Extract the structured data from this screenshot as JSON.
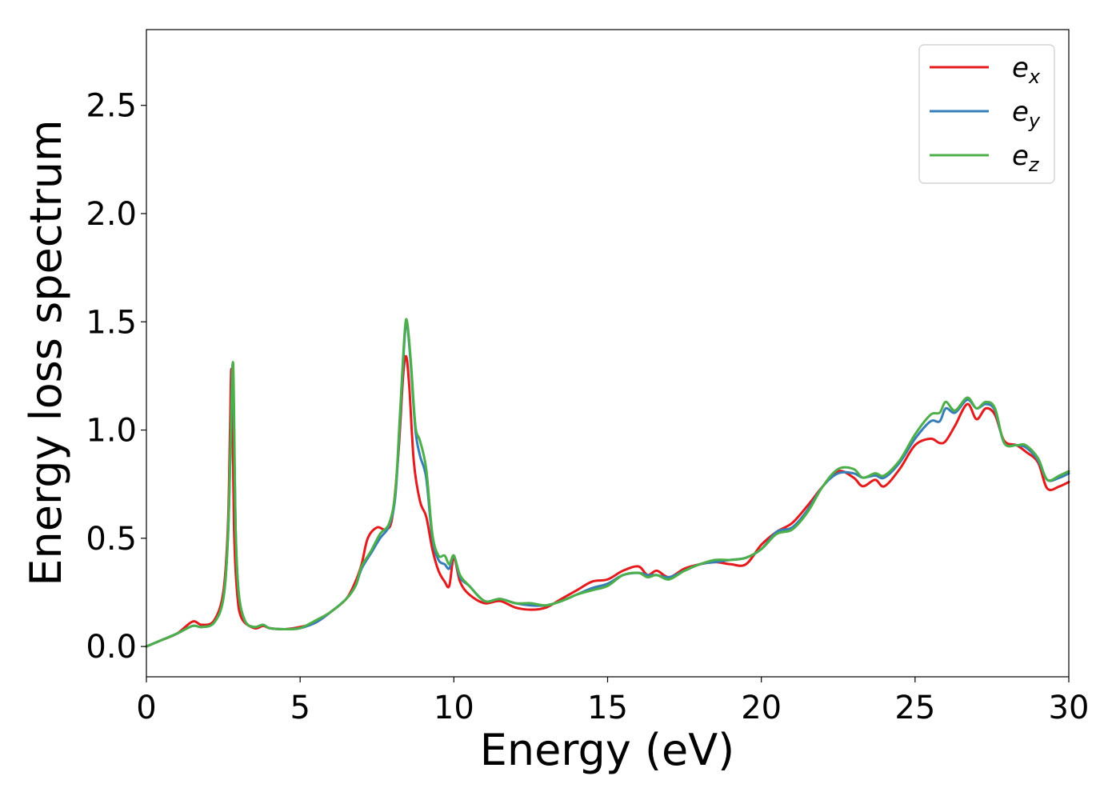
{
  "chart_data": {
    "type": "line",
    "title": "",
    "xlabel": "Energy (eV)",
    "ylabel": "Energy loss spectrum",
    "xlim": [
      0,
      30
    ],
    "ylim": [
      -0.14,
      2.85
    ],
    "xticks": [
      0,
      5,
      10,
      15,
      20,
      25,
      30
    ],
    "yticks": [
      0.0,
      0.5,
      1.0,
      1.5,
      2.0,
      2.5
    ],
    "xtick_labels": [
      "0",
      "5",
      "10",
      "15",
      "20",
      "25",
      "30"
    ],
    "ytick_labels": [
      "0.0",
      "0.5",
      "1.0",
      "1.5",
      "2.0",
      "2.5"
    ],
    "grid": false,
    "legend_position": "top-right",
    "legend": [
      {
        "base": "e",
        "sub": "x"
      },
      {
        "base": "e",
        "sub": "y"
      },
      {
        "base": "e",
        "sub": "z"
      }
    ],
    "series": [
      {
        "color": "#e41a1c",
        "points": [
          [
            0,
            0
          ],
          [
            0.5,
            0.03
          ],
          [
            1.0,
            0.06
          ],
          [
            1.5,
            0.115
          ],
          [
            1.8,
            0.1
          ],
          [
            2.2,
            0.12
          ],
          [
            2.5,
            0.25
          ],
          [
            2.65,
            0.55
          ],
          [
            2.72,
            1.0
          ],
          [
            2.76,
            1.28
          ],
          [
            2.8,
            1.1
          ],
          [
            2.85,
            0.55
          ],
          [
            2.95,
            0.25
          ],
          [
            3.1,
            0.13
          ],
          [
            3.5,
            0.085
          ],
          [
            3.8,
            0.095
          ],
          [
            4.0,
            0.085
          ],
          [
            4.5,
            0.08
          ],
          [
            5,
            0.09
          ],
          [
            5.5,
            0.11
          ],
          [
            6,
            0.16
          ],
          [
            6.5,
            0.22
          ],
          [
            6.8,
            0.3
          ],
          [
            7.0,
            0.38
          ],
          [
            7.2,
            0.5
          ],
          [
            7.5,
            0.55
          ],
          [
            7.8,
            0.54
          ],
          [
            8.0,
            0.6
          ],
          [
            8.2,
            0.9
          ],
          [
            8.35,
            1.25
          ],
          [
            8.45,
            1.34
          ],
          [
            8.55,
            1.2
          ],
          [
            8.7,
            0.85
          ],
          [
            8.9,
            0.67
          ],
          [
            9.1,
            0.6
          ],
          [
            9.3,
            0.45
          ],
          [
            9.5,
            0.35
          ],
          [
            9.7,
            0.3
          ],
          [
            9.85,
            0.28
          ],
          [
            10.0,
            0.41
          ],
          [
            10.2,
            0.3
          ],
          [
            10.5,
            0.24
          ],
          [
            11,
            0.2
          ],
          [
            11.5,
            0.21
          ],
          [
            12,
            0.18
          ],
          [
            12.5,
            0.17
          ],
          [
            13,
            0.18
          ],
          [
            13.5,
            0.22
          ],
          [
            14,
            0.26
          ],
          [
            14.5,
            0.3
          ],
          [
            15,
            0.31
          ],
          [
            15.5,
            0.35
          ],
          [
            16,
            0.37
          ],
          [
            16.3,
            0.33
          ],
          [
            16.6,
            0.35
          ],
          [
            17,
            0.32
          ],
          [
            17.5,
            0.36
          ],
          [
            18,
            0.38
          ],
          [
            18.5,
            0.39
          ],
          [
            19,
            0.38
          ],
          [
            19.5,
            0.38
          ],
          [
            20,
            0.47
          ],
          [
            20.5,
            0.53
          ],
          [
            21,
            0.57
          ],
          [
            21.5,
            0.65
          ],
          [
            22,
            0.74
          ],
          [
            22.5,
            0.81
          ],
          [
            23,
            0.78
          ],
          [
            23.3,
            0.74
          ],
          [
            23.7,
            0.77
          ],
          [
            24,
            0.74
          ],
          [
            24.5,
            0.82
          ],
          [
            25,
            0.93
          ],
          [
            25.5,
            0.96
          ],
          [
            25.8,
            0.94
          ],
          [
            26,
            0.95
          ],
          [
            26.3,
            1.02
          ],
          [
            26.7,
            1.12
          ],
          [
            27,
            1.05
          ],
          [
            27.3,
            1.1
          ],
          [
            27.6,
            1.07
          ],
          [
            27.9,
            0.95
          ],
          [
            28.3,
            0.93
          ],
          [
            28.6,
            0.9
          ],
          [
            29,
            0.85
          ],
          [
            29.3,
            0.73
          ],
          [
            29.7,
            0.74
          ],
          [
            30,
            0.76
          ]
        ]
      },
      {
        "color": "#377eb8",
        "points": [
          [
            0,
            0
          ],
          [
            0.5,
            0.03
          ],
          [
            1.0,
            0.06
          ],
          [
            1.5,
            0.095
          ],
          [
            1.8,
            0.09
          ],
          [
            2.2,
            0.11
          ],
          [
            2.5,
            0.22
          ],
          [
            2.65,
            0.5
          ],
          [
            2.74,
            0.95
          ],
          [
            2.8,
            1.3
          ],
          [
            2.84,
            1.1
          ],
          [
            2.9,
            0.55
          ],
          [
            3.0,
            0.25
          ],
          [
            3.2,
            0.12
          ],
          [
            3.5,
            0.09
          ],
          [
            3.8,
            0.1
          ],
          [
            4.0,
            0.085
          ],
          [
            4.5,
            0.08
          ],
          [
            5,
            0.085
          ],
          [
            5.5,
            0.11
          ],
          [
            6,
            0.16
          ],
          [
            6.5,
            0.22
          ],
          [
            6.8,
            0.28
          ],
          [
            7.0,
            0.36
          ],
          [
            7.3,
            0.43
          ],
          [
            7.6,
            0.5
          ],
          [
            7.9,
            0.56
          ],
          [
            8.1,
            0.7
          ],
          [
            8.25,
            1.05
          ],
          [
            8.4,
            1.43
          ],
          [
            8.48,
            1.49
          ],
          [
            8.6,
            1.3
          ],
          [
            8.75,
            1.0
          ],
          [
            8.9,
            0.88
          ],
          [
            9.1,
            0.78
          ],
          [
            9.3,
            0.5
          ],
          [
            9.5,
            0.4
          ],
          [
            9.7,
            0.38
          ],
          [
            9.85,
            0.36
          ],
          [
            10.0,
            0.42
          ],
          [
            10.2,
            0.32
          ],
          [
            10.5,
            0.28
          ],
          [
            11,
            0.21
          ],
          [
            11.5,
            0.22
          ],
          [
            12,
            0.2
          ],
          [
            12.5,
            0.19
          ],
          [
            13,
            0.19
          ],
          [
            13.5,
            0.21
          ],
          [
            14,
            0.24
          ],
          [
            14.5,
            0.27
          ],
          [
            15,
            0.29
          ],
          [
            15.5,
            0.33
          ],
          [
            16,
            0.34
          ],
          [
            16.3,
            0.33
          ],
          [
            16.6,
            0.33
          ],
          [
            17,
            0.32
          ],
          [
            17.5,
            0.35
          ],
          [
            18,
            0.38
          ],
          [
            18.5,
            0.39
          ],
          [
            19,
            0.4
          ],
          [
            19.5,
            0.41
          ],
          [
            20,
            0.45
          ],
          [
            20.5,
            0.53
          ],
          [
            21,
            0.55
          ],
          [
            21.5,
            0.63
          ],
          [
            22,
            0.74
          ],
          [
            22.5,
            0.8
          ],
          [
            23,
            0.8
          ],
          [
            23.3,
            0.78
          ],
          [
            23.7,
            0.79
          ],
          [
            24,
            0.78
          ],
          [
            24.5,
            0.85
          ],
          [
            25,
            0.96
          ],
          [
            25.5,
            1.04
          ],
          [
            25.8,
            1.04
          ],
          [
            26,
            1.1
          ],
          [
            26.3,
            1.08
          ],
          [
            26.7,
            1.14
          ],
          [
            27,
            1.1
          ],
          [
            27.3,
            1.12
          ],
          [
            27.6,
            1.09
          ],
          [
            27.9,
            0.94
          ],
          [
            28.3,
            0.93
          ],
          [
            28.6,
            0.92
          ],
          [
            29,
            0.86
          ],
          [
            29.3,
            0.77
          ],
          [
            29.7,
            0.78
          ],
          [
            30,
            0.8
          ]
        ]
      },
      {
        "color": "#4daf4a",
        "points": [
          [
            0,
            0
          ],
          [
            0.5,
            0.03
          ],
          [
            1.0,
            0.06
          ],
          [
            1.5,
            0.095
          ],
          [
            1.8,
            0.09
          ],
          [
            2.2,
            0.11
          ],
          [
            2.5,
            0.22
          ],
          [
            2.65,
            0.5
          ],
          [
            2.74,
            0.95
          ],
          [
            2.81,
            1.31
          ],
          [
            2.85,
            1.1
          ],
          [
            2.9,
            0.55
          ],
          [
            3.0,
            0.25
          ],
          [
            3.2,
            0.12
          ],
          [
            3.5,
            0.09
          ],
          [
            3.8,
            0.1
          ],
          [
            4.0,
            0.085
          ],
          [
            4.5,
            0.08
          ],
          [
            5,
            0.085
          ],
          [
            5.5,
            0.12
          ],
          [
            6,
            0.16
          ],
          [
            6.5,
            0.22
          ],
          [
            6.8,
            0.28
          ],
          [
            7.0,
            0.37
          ],
          [
            7.3,
            0.44
          ],
          [
            7.6,
            0.52
          ],
          [
            7.9,
            0.57
          ],
          [
            8.1,
            0.72
          ],
          [
            8.25,
            1.08
          ],
          [
            8.4,
            1.45
          ],
          [
            8.48,
            1.5
          ],
          [
            8.6,
            1.32
          ],
          [
            8.75,
            1.02
          ],
          [
            8.9,
            0.95
          ],
          [
            9.1,
            0.82
          ],
          [
            9.3,
            0.52
          ],
          [
            9.5,
            0.42
          ],
          [
            9.7,
            0.42
          ],
          [
            9.85,
            0.38
          ],
          [
            10.0,
            0.42
          ],
          [
            10.2,
            0.33
          ],
          [
            10.5,
            0.28
          ],
          [
            11,
            0.21
          ],
          [
            11.5,
            0.22
          ],
          [
            12,
            0.2
          ],
          [
            12.5,
            0.2
          ],
          [
            13,
            0.19
          ],
          [
            13.5,
            0.21
          ],
          [
            14,
            0.24
          ],
          [
            14.5,
            0.26
          ],
          [
            15,
            0.28
          ],
          [
            15.5,
            0.33
          ],
          [
            16,
            0.34
          ],
          [
            16.3,
            0.32
          ],
          [
            16.6,
            0.33
          ],
          [
            17,
            0.31
          ],
          [
            17.5,
            0.35
          ],
          [
            18,
            0.38
          ],
          [
            18.5,
            0.4
          ],
          [
            19,
            0.4
          ],
          [
            19.5,
            0.41
          ],
          [
            20,
            0.45
          ],
          [
            20.5,
            0.52
          ],
          [
            21,
            0.54
          ],
          [
            21.5,
            0.62
          ],
          [
            22,
            0.74
          ],
          [
            22.5,
            0.82
          ],
          [
            23,
            0.82
          ],
          [
            23.3,
            0.78
          ],
          [
            23.7,
            0.8
          ],
          [
            24,
            0.79
          ],
          [
            24.5,
            0.86
          ],
          [
            25,
            0.98
          ],
          [
            25.5,
            1.07
          ],
          [
            25.8,
            1.08
          ],
          [
            26,
            1.13
          ],
          [
            26.3,
            1.09
          ],
          [
            26.7,
            1.15
          ],
          [
            27,
            1.1
          ],
          [
            27.3,
            1.13
          ],
          [
            27.6,
            1.1
          ],
          [
            27.9,
            0.94
          ],
          [
            28.3,
            0.93
          ],
          [
            28.6,
            0.93
          ],
          [
            29,
            0.87
          ],
          [
            29.3,
            0.77
          ],
          [
            29.7,
            0.79
          ],
          [
            30,
            0.81
          ]
        ]
      }
    ]
  }
}
